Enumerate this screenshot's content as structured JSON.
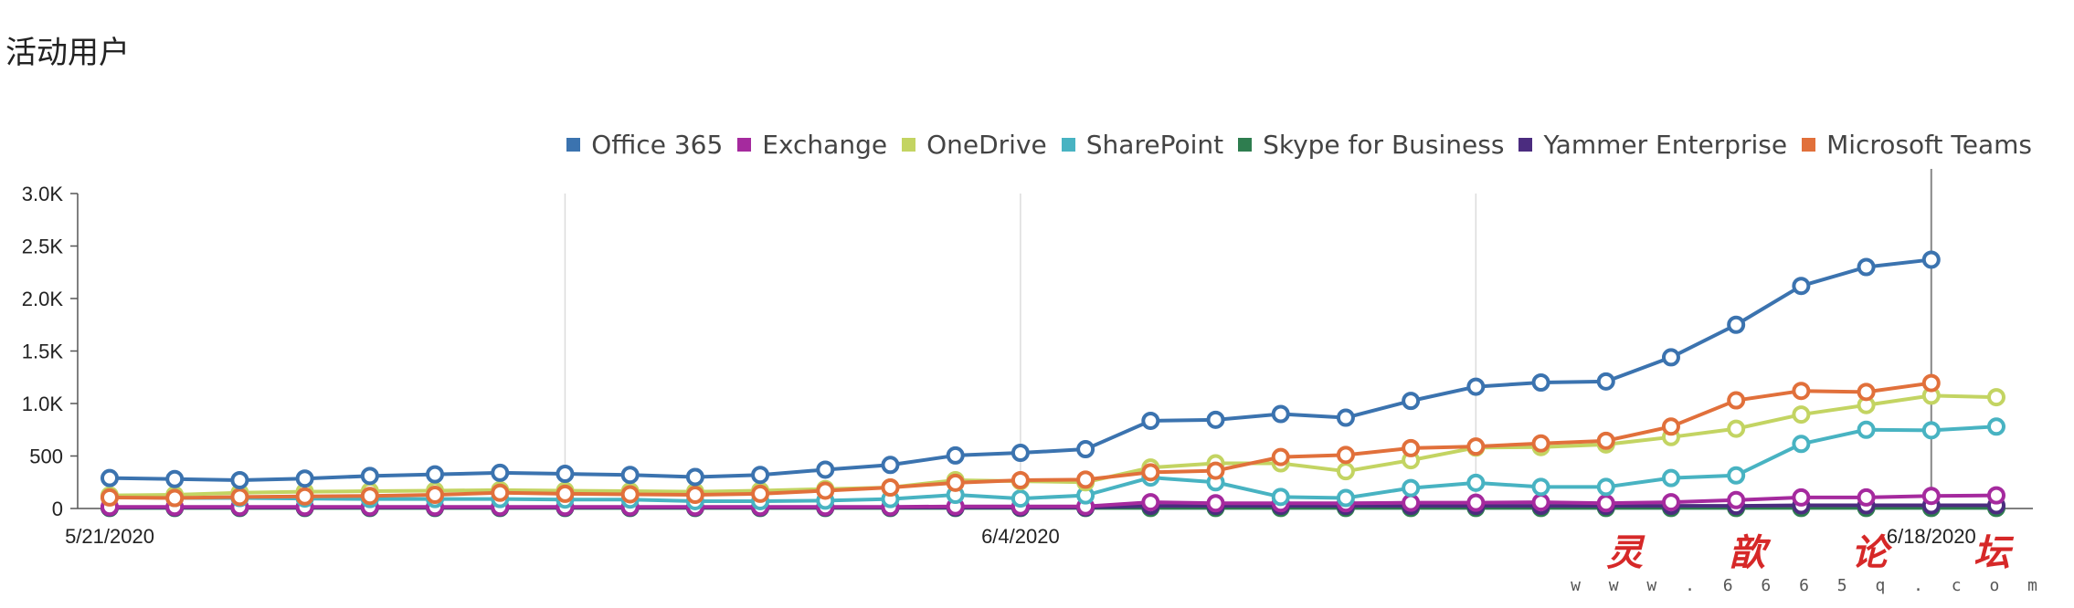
{
  "page": {
    "title": "活动用户"
  },
  "watermark": {
    "logo": "灵 歆 论 坛",
    "url": "w w w . 6 6 6 5 q . c o m"
  },
  "chart_data": {
    "type": "line",
    "xlabel": "",
    "ylabel": "",
    "ylim": [
      0,
      3000
    ],
    "yticks": [
      0,
      500,
      1000,
      1500,
      2000,
      2500,
      3000
    ],
    "ytick_labels": [
      "0",
      "500",
      "1.0K",
      "1.5K",
      "2.0K",
      "2.5K",
      "3.0K"
    ],
    "x": [
      "5/21/2020",
      "5/22/2020",
      "5/23/2020",
      "5/24/2020",
      "5/25/2020",
      "5/26/2020",
      "5/27/2020",
      "5/28/2020",
      "5/29/2020",
      "5/30/2020",
      "5/31/2020",
      "6/1/2020",
      "6/2/2020",
      "6/3/2020",
      "6/4/2020",
      "6/5/2020",
      "6/6/2020",
      "6/7/2020",
      "6/8/2020",
      "6/9/2020",
      "6/10/2020",
      "6/11/2020",
      "6/12/2020",
      "6/13/2020",
      "6/14/2020",
      "6/15/2020",
      "6/16/2020",
      "6/17/2020",
      "6/18/2020",
      "6/19/2020"
    ],
    "xtick_labels": [
      "5/21/2020",
      "6/4/2020",
      "6/18/2020"
    ],
    "xtick_index": [
      0,
      14,
      28
    ],
    "gridline_index": [
      7,
      14,
      21,
      28
    ],
    "cursor_index": 28,
    "grid": true,
    "legend_position": "top-right",
    "series": [
      {
        "name": "Office 365",
        "color": "#3b73af",
        "values": [
          290,
          280,
          270,
          285,
          310,
          325,
          340,
          330,
          320,
          300,
          320,
          370,
          415,
          505,
          530,
          565,
          835,
          845,
          900,
          865,
          1025,
          1160,
          1200,
          1210,
          1440,
          1750,
          2120,
          2300,
          2370,
          null
        ]
      },
      {
        "name": "Exchange",
        "color": "#a52a9e",
        "values": [
          15,
          15,
          15,
          15,
          15,
          15,
          15,
          15,
          15,
          15,
          15,
          15,
          15,
          20,
          20,
          20,
          60,
          50,
          50,
          50,
          55,
          55,
          60,
          50,
          60,
          80,
          105,
          105,
          120,
          125
        ]
      },
      {
        "name": "OneDrive",
        "color": "#c3d462",
        "values": [
          125,
          130,
          150,
          160,
          165,
          170,
          175,
          170,
          165,
          160,
          170,
          185,
          200,
          270,
          260,
          250,
          390,
          430,
          430,
          355,
          460,
          580,
          585,
          610,
          680,
          760,
          895,
          985,
          1075,
          1060
        ]
      },
      {
        "name": "SharePoint",
        "color": "#48b3c2",
        "values": [
          110,
          100,
          100,
          95,
          90,
          90,
          90,
          85,
          85,
          70,
          70,
          75,
          90,
          130,
          95,
          125,
          295,
          250,
          110,
          100,
          195,
          245,
          205,
          205,
          290,
          315,
          615,
          750,
          745,
          780
        ]
      },
      {
        "name": "Skype for Business",
        "color": "#2e7d4f",
        "values": [
          5,
          5,
          5,
          5,
          5,
          5,
          5,
          5,
          5,
          5,
          5,
          5,
          5,
          5,
          5,
          5,
          5,
          5,
          5,
          5,
          5,
          5,
          5,
          5,
          5,
          5,
          5,
          5,
          5,
          5
        ]
      },
      {
        "name": "Yammer Enterprise",
        "color": "#4b2c7f",
        "values": [
          10,
          10,
          10,
          10,
          10,
          10,
          10,
          10,
          10,
          10,
          10,
          10,
          10,
          10,
          10,
          10,
          25,
          25,
          25,
          25,
          25,
          25,
          25,
          25,
          25,
          25,
          30,
          30,
          30,
          30
        ]
      },
      {
        "name": "Microsoft Teams",
        "color": "#e1703b",
        "values": [
          105,
          100,
          110,
          115,
          120,
          130,
          150,
          140,
          135,
          130,
          140,
          170,
          200,
          245,
          270,
          275,
          345,
          360,
          490,
          510,
          575,
          590,
          620,
          645,
          780,
          1030,
          1120,
          1110,
          1195,
          null
        ]
      }
    ]
  }
}
